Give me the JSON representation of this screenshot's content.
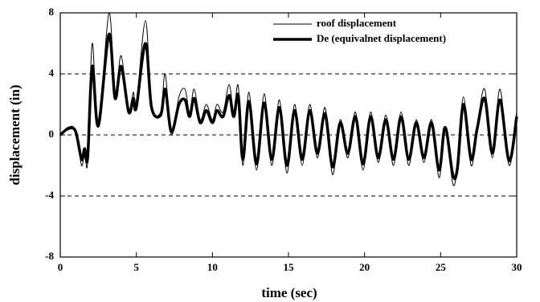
{
  "chart_data": {
    "type": "line",
    "xlabel": "time (sec)",
    "ylabel": "displacement (in)",
    "x": [
      0,
      0.5,
      1.0,
      1.4,
      1.6,
      1.8,
      2.1,
      2.5,
      3.2,
      3.6,
      4.0,
      4.5,
      4.8,
      5.0,
      5.6,
      6.0,
      6.6,
      6.9,
      7.3,
      7.8,
      8.2,
      8.5,
      8.8,
      9.2,
      9.6,
      10.0,
      10.3,
      10.7,
      11.1,
      11.4,
      11.7,
      12.0,
      12.4,
      12.9,
      13.4,
      13.9,
      14.4,
      14.9,
      15.4,
      15.9,
      16.4,
      16.9,
      17.4,
      17.9,
      18.4,
      18.9,
      19.4,
      19.9,
      20.4,
      20.9,
      21.4,
      21.9,
      22.4,
      22.9,
      23.4,
      23.9,
      24.4,
      24.9,
      25.3,
      25.8,
      26.1,
      26.5,
      27.0,
      27.4,
      27.9,
      28.4,
      28.9,
      29.5,
      30
    ],
    "series": [
      {
        "name": "roof displacement",
        "color": "#000000",
        "width": 1,
        "values": [
          0,
          0.5,
          0.3,
          -2.0,
          -1.0,
          -1.8,
          6.0,
          0.5,
          8.0,
          2.5,
          5.2,
          1.5,
          2.8,
          2.0,
          7.5,
          2.0,
          1.5,
          4.0,
          0.0,
          2.5,
          3.0,
          1.5,
          3.0,
          1.0,
          2.0,
          1.0,
          2.0,
          1.5,
          3.3,
          1.5,
          3.2,
          -2.0,
          2.8,
          -2.3,
          2.7,
          -2.0,
          2.3,
          -2.5,
          2.0,
          -2.0,
          2.0,
          -1.5,
          1.8,
          -2.6,
          1.0,
          -1.5,
          1.5,
          -2.3,
          1.5,
          -1.8,
          1.3,
          -2.0,
          1.5,
          -2.0,
          1.0,
          -1.8,
          1.0,
          -2.8,
          0.5,
          -3.2,
          -2.0,
          2.5,
          -2.0,
          0.5,
          3.0,
          -1.5,
          3.0,
          -2.0,
          1.5
        ]
      },
      {
        "name": "De (equivalnet displacement)",
        "color": "#000000",
        "width": 3.5,
        "values": [
          0,
          0.4,
          0.25,
          -1.6,
          -0.9,
          -1.5,
          4.5,
          0.6,
          6.6,
          2.4,
          4.5,
          1.5,
          2.4,
          1.8,
          6.0,
          1.8,
          1.3,
          3.0,
          0.2,
          2.0,
          2.3,
          1.2,
          2.4,
          0.8,
          1.6,
          0.8,
          1.6,
          1.2,
          2.6,
          1.2,
          2.6,
          -1.6,
          2.2,
          -1.9,
          2.1,
          -1.6,
          1.8,
          -2.0,
          1.6,
          -1.6,
          1.6,
          -1.2,
          1.4,
          -2.1,
          0.8,
          -1.2,
          1.2,
          -1.9,
          1.2,
          -1.5,
          1.0,
          -1.6,
          1.2,
          -1.6,
          0.8,
          -1.5,
          0.8,
          -2.3,
          0.5,
          -2.6,
          -2.2,
          2.0,
          -1.6,
          0.4,
          2.4,
          -1.2,
          2.3,
          -1.7,
          1.2
        ]
      }
    ],
    "xlim": [
      0,
      30
    ],
    "xticks": [
      0,
      5,
      10,
      15,
      20,
      25,
      30
    ],
    "ylim": [
      -8,
      8
    ],
    "yticks": [
      -8,
      -4,
      0,
      4,
      8
    ],
    "grid": true,
    "legend": "upper right"
  }
}
